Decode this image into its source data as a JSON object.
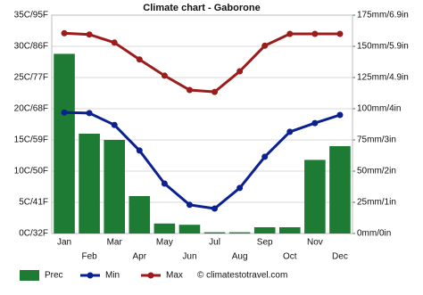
{
  "chart_data": {
    "type": "bar-line",
    "title": "Climate chart - Gaborone",
    "categories": [
      "Jan",
      "Feb",
      "Mar",
      "Apr",
      "May",
      "Jun",
      "Jul",
      "Aug",
      "Sep",
      "Oct",
      "Nov",
      "Dec"
    ],
    "series": [
      {
        "name": "Prec",
        "type": "bar",
        "axis": "y2",
        "color": "#1e7b34",
        "values": [
          144,
          80,
          75,
          30,
          8,
          7,
          1,
          1,
          5,
          5,
          59,
          70
        ]
      },
      {
        "name": "Min",
        "type": "line",
        "color": "#0b2191",
        "values": [
          19.4,
          19.3,
          17.4,
          13.3,
          8,
          4.6,
          4,
          7.3,
          12.3,
          16.3,
          17.7,
          19
        ]
      },
      {
        "name": "Max",
        "type": "line",
        "color": "#9c1c1c",
        "values": [
          32.1,
          31.9,
          30.6,
          27.9,
          25.3,
          23,
          22.7,
          26,
          30.1,
          32,
          32,
          32
        ]
      }
    ],
    "ylim": [
      0,
      35
    ],
    "yticks": [
      {
        "value": 0,
        "label": "0C/32F"
      },
      {
        "value": 5,
        "label": "5C/41F"
      },
      {
        "value": 10,
        "label": "10C/50F"
      },
      {
        "value": 15,
        "label": "15C/59F"
      },
      {
        "value": 20,
        "label": "20C/68F"
      },
      {
        "value": 25,
        "label": "25C/77F"
      },
      {
        "value": 30,
        "label": "30C/86F"
      },
      {
        "value": 35,
        "label": "35C/95F"
      }
    ],
    "y2lim": [
      0,
      175
    ],
    "y2ticks": [
      {
        "value": 0,
        "label": "0mm/0in"
      },
      {
        "value": 25,
        "label": "25mm/1in"
      },
      {
        "value": 50,
        "label": "50mm/2in"
      },
      {
        "value": 75,
        "label": "75mm/3in"
      },
      {
        "value": 100,
        "label": "100mm/4in"
      },
      {
        "value": 125,
        "label": "125mm/4.9in"
      },
      {
        "value": 150,
        "label": "150mm/5.9in"
      },
      {
        "value": 175,
        "label": "175mm/6.9in"
      }
    ],
    "grid": true,
    "watermark": "© climatestotravel.com"
  }
}
